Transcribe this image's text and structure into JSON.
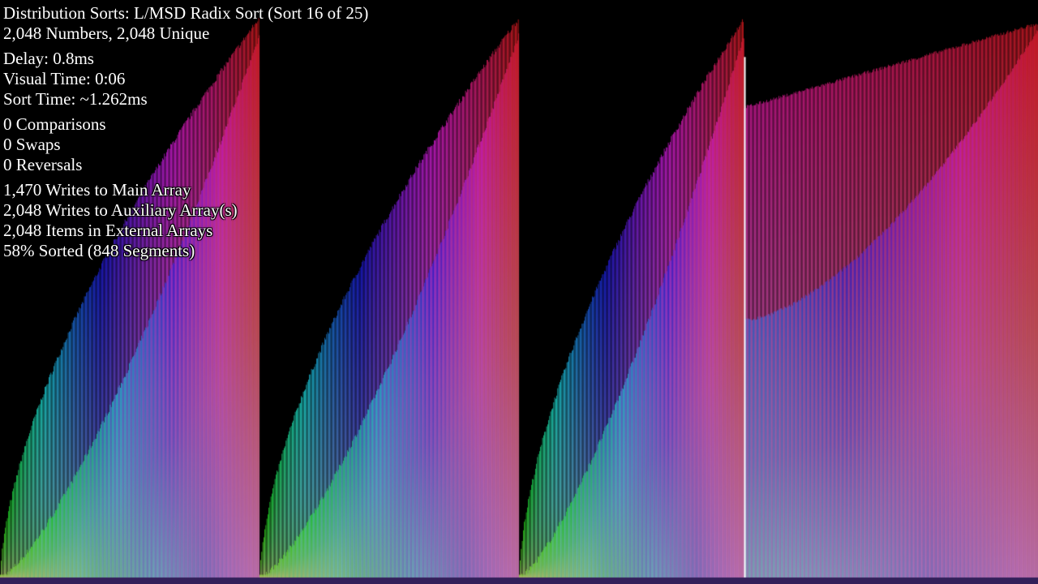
{
  "header": {
    "sort_title": "Distribution Sorts: L/MSD Radix Sort (Sort 16 of 25)",
    "array_info": "2,048 Numbers, 2,048 Unique"
  },
  "timing": {
    "delay": "Delay: 0.8ms",
    "visual_time": "Visual Time: 0:06",
    "sort_time": "Sort Time: ~1.262ms"
  },
  "operations": {
    "comparisons": "0 Comparisons",
    "swaps": "0 Swaps",
    "reversals": "0 Reversals"
  },
  "writes": {
    "main_array": "1,470 Writes to Main Array",
    "auxiliary_array": "2,048 Writes to Auxiliary Array(s)",
    "external_items": "2,048 Items in External Arrays",
    "sorted_status": "58% Sorted (848 Segments)"
  },
  "visualization": {
    "array_length": 2048,
    "background": "#000000",
    "marker_color": "#ffffff",
    "highlight_index": 1468
  }
}
